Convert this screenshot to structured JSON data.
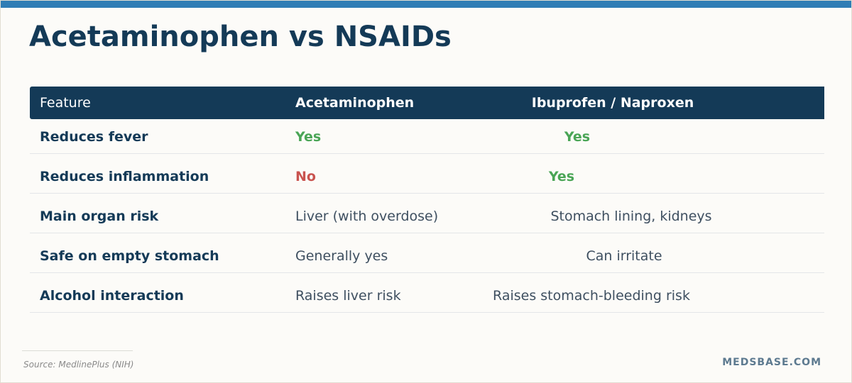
{
  "header": {
    "title": "Acetaminophen vs NSAIDs"
  },
  "table": {
    "columns": [
      "Feature",
      "Acetaminophen",
      "Ibuprofen / Naproxen"
    ],
    "rows": [
      [
        "Reduces fever",
        "Yes",
        "Yes"
      ],
      [
        "Reduces inflammation",
        "No",
        "Yes"
      ],
      [
        "Main organ risk",
        "Liver (with overdose)",
        "Stomach lining, kidneys"
      ],
      [
        "Safe on empty stomach",
        "Generally yes",
        "Can irritate"
      ],
      [
        "Alcohol interaction",
        "Raises liver risk",
        "Raises stomach-bleeding risk"
      ]
    ]
  },
  "footer": {
    "source": "Source: MedlinePlus (NIH)",
    "brand": "MEDSBASE.COM"
  }
}
